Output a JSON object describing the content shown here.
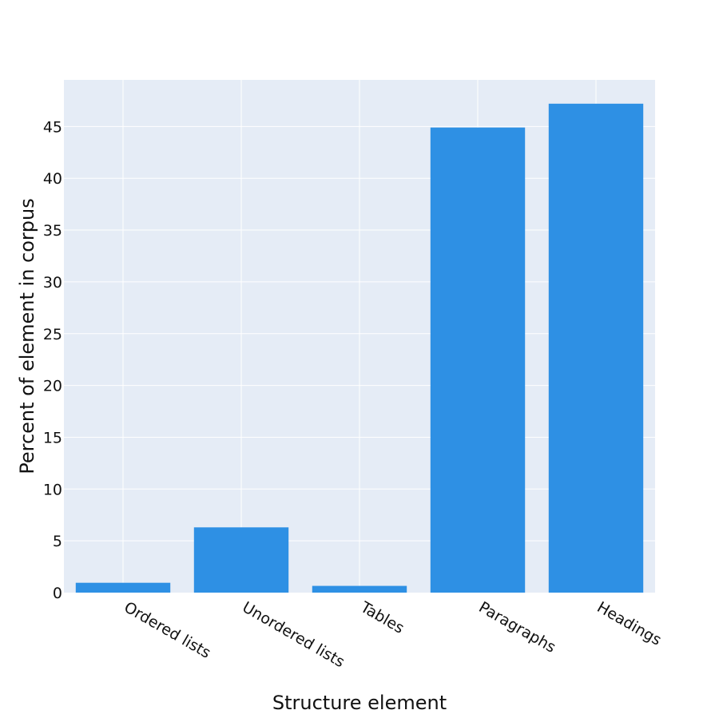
{
  "chart_data": {
    "type": "bar",
    "title": "",
    "xlabel": "Structure element",
    "ylabel": "Percent of element in corpus",
    "categories": [
      "Ordered lists",
      "Unordered lists",
      "Tables",
      "Paragraphs",
      "Headings"
    ],
    "values": [
      0.95,
      6.3,
      0.65,
      44.9,
      47.2
    ],
    "ylim": [
      0,
      49.5
    ],
    "yticks": [
      0,
      5,
      10,
      15,
      20,
      25,
      30,
      35,
      40,
      45
    ],
    "ytick_labels": [
      "0",
      "5",
      "10",
      "15",
      "20",
      "25",
      "30",
      "35",
      "40",
      "45"
    ],
    "grid": true,
    "legend": "none",
    "colors": {
      "bar": "#2e90e4",
      "plot_background": "#e5ecf6",
      "grid": "#ffffff"
    }
  }
}
